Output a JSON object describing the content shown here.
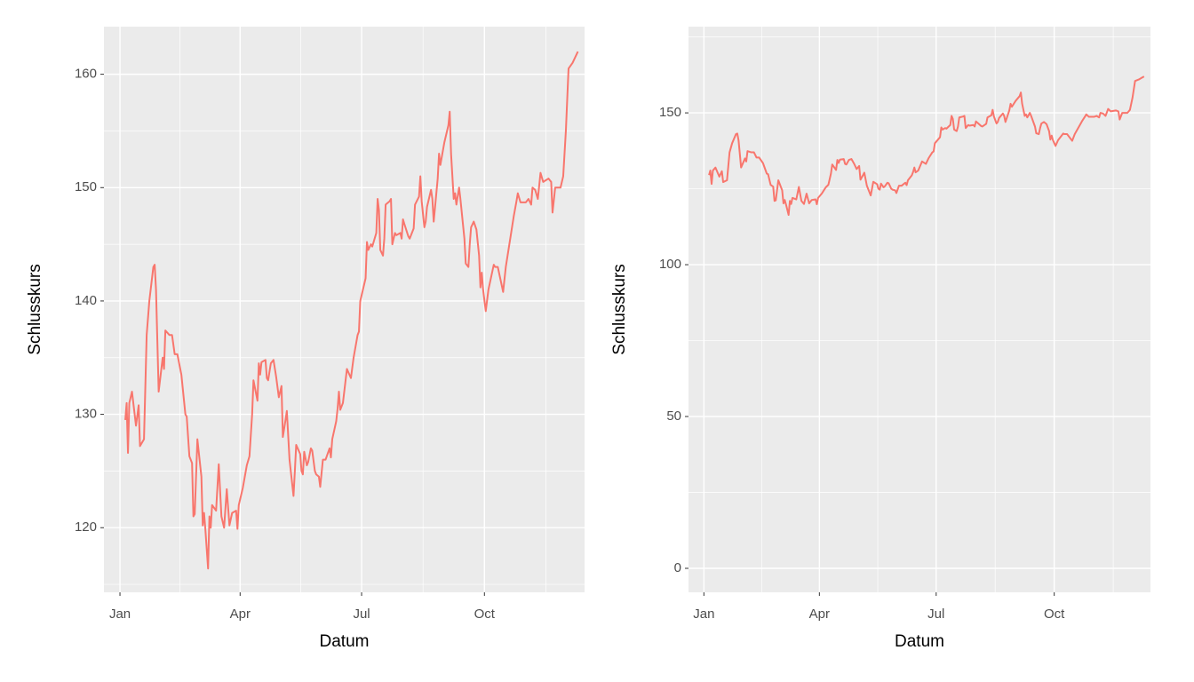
{
  "chart_data": [
    {
      "type": "line",
      "xlabel": "Datum",
      "ylabel": "Schlusskurs",
      "color": "#F8766D",
      "grid": true,
      "xlim": [
        -12,
        348
      ],
      "ylim": [
        114.3,
        164.2
      ],
      "xticks": [
        {
          "value": 0,
          "label": "Jan"
        },
        {
          "value": 90,
          "label": "Apr"
        },
        {
          "value": 181,
          "label": "Jul"
        },
        {
          "value": 273,
          "label": "Oct"
        }
      ],
      "yticks": [
        120,
        130,
        140,
        150,
        160
      ],
      "x": [
        4,
        5,
        6,
        7,
        9,
        12,
        14,
        15,
        18,
        20,
        22,
        25,
        26,
        27,
        29,
        31,
        32,
        33,
        34,
        37,
        39,
        41,
        43,
        46,
        49,
        50,
        52,
        54,
        55,
        56,
        58,
        61,
        62,
        63,
        64,
        66,
        67,
        68,
        69,
        72,
        74,
        76,
        78,
        80,
        82,
        84,
        87,
        88,
        89,
        92,
        95,
        97,
        99,
        100,
        103,
        104,
        105,
        106,
        109,
        110,
        111,
        113,
        115,
        117,
        119,
        121,
        122,
        124,
        125,
        127,
        130,
        131,
        132,
        135,
        136,
        137,
        138,
        140,
        141,
        143,
        144,
        146,
        147,
        149,
        150,
        152,
        154,
        157,
        158,
        159,
        162,
        163,
        164,
        165,
        167,
        169,
        170,
        173,
        175,
        178,
        179,
        180,
        183,
        184,
        185,
        186,
        188,
        189,
        192,
        193,
        194,
        195,
        197,
        198,
        199,
        202,
        203,
        204,
        206,
        207,
        210,
        211,
        212,
        213,
        216,
        217,
        220,
        221,
        224,
        225,
        226,
        228,
        229,
        230,
        233,
        234,
        235,
        238,
        239,
        240,
        243,
        246,
        247,
        248,
        250,
        251,
        252,
        254,
        255,
        258,
        259,
        261,
        262,
        263,
        265,
        267,
        269,
        270,
        271,
        272,
        274,
        276,
        280,
        281,
        283,
        287,
        289,
        293,
        295,
        297,
        298,
        300,
        304,
        306,
        308,
        309,
        311,
        313,
        315,
        317,
        321,
        323,
        324,
        326,
        330,
        332,
        334,
        336,
        339,
        341,
        343
      ],
      "values": [
        129.5,
        131,
        126.6,
        131,
        132,
        129,
        130.8,
        127.2,
        127.8,
        137,
        140,
        143,
        143.2,
        141,
        132,
        134,
        135,
        134,
        137.4,
        137,
        137,
        135.3,
        135.3,
        133.5,
        130,
        129.8,
        126.3,
        125.7,
        121,
        121.2,
        127.8,
        124.5,
        120.2,
        121.3,
        119.8,
        116.4,
        121,
        120,
        122,
        121.5,
        125.6,
        121,
        120,
        123.4,
        120.2,
        121.3,
        121.5,
        119.9,
        122,
        123.5,
        125.5,
        126.3,
        130,
        133,
        131.2,
        134.5,
        133.5,
        134.6,
        134.8,
        133.2,
        133,
        134.5,
        134.8,
        133.3,
        131.5,
        132.5,
        128,
        129.5,
        130.3,
        126,
        122.8,
        125,
        127.3,
        126.5,
        125,
        124.7,
        126.7,
        125.5,
        125.8,
        127,
        126.8,
        125,
        124.7,
        124.5,
        123.6,
        126,
        126,
        127,
        126.2,
        127.8,
        129.4,
        130.5,
        132,
        130.4,
        131,
        133,
        134,
        133.2,
        135,
        137,
        137.3,
        140,
        141.5,
        142,
        145.2,
        144.5,
        145,
        144.8,
        146,
        149,
        148,
        144.5,
        144,
        145.5,
        148.5,
        148.8,
        149,
        145,
        146,
        145.8,
        146,
        145.5,
        147.2,
        146.8,
        145.7,
        145.5,
        146.4,
        148.5,
        149.2,
        151,
        148.8,
        146.5,
        147,
        148.3,
        149.8,
        149,
        147,
        150.8,
        153,
        152,
        154,
        155.5,
        156.7,
        153,
        149,
        149.5,
        148.5,
        150,
        149,
        145.5,
        143.3,
        143,
        145,
        146.5,
        147,
        146.3,
        144,
        141.2,
        142.5,
        141,
        139.1,
        141,
        143.2,
        143,
        143,
        140.8,
        143,
        146,
        147.5,
        148.8,
        149.5,
        148.7,
        148.7,
        149,
        148.5,
        150,
        149.8,
        149,
        151.3,
        150.5,
        150.8,
        150.5,
        147.8,
        150,
        150,
        151,
        155,
        160.5,
        161,
        161.5,
        162
      ]
    },
    {
      "type": "line",
      "xlabel": "Datum",
      "ylabel": "Schlusskurs",
      "color": "#F8766D",
      "grid": true,
      "xlim": [
        -12,
        348
      ],
      "ylim": [
        -7.9,
        178.4
      ],
      "xticks": [
        {
          "value": 0,
          "label": "Jan"
        },
        {
          "value": 90,
          "label": "Apr"
        },
        {
          "value": 181,
          "label": "Jul"
        },
        {
          "value": 273,
          "label": "Oct"
        }
      ],
      "yticks": [
        0,
        50,
        100,
        150
      ],
      "x": [
        4,
        5,
        6,
        7,
        9,
        12,
        14,
        15,
        18,
        20,
        22,
        25,
        26,
        27,
        29,
        31,
        32,
        33,
        34,
        37,
        39,
        41,
        43,
        46,
        49,
        50,
        52,
        54,
        55,
        56,
        58,
        61,
        62,
        63,
        64,
        66,
        67,
        68,
        69,
        72,
        74,
        76,
        78,
        80,
        82,
        84,
        87,
        88,
        89,
        92,
        95,
        97,
        99,
        100,
        103,
        104,
        105,
        106,
        109,
        110,
        111,
        113,
        115,
        117,
        119,
        121,
        122,
        124,
        125,
        127,
        130,
        131,
        132,
        135,
        136,
        137,
        138,
        140,
        141,
        143,
        144,
        146,
        147,
        149,
        150,
        152,
        154,
        157,
        158,
        159,
        162,
        163,
        164,
        165,
        167,
        169,
        170,
        173,
        175,
        178,
        179,
        180,
        183,
        184,
        185,
        186,
        188,
        189,
        192,
        193,
        194,
        195,
        197,
        198,
        199,
        202,
        203,
        204,
        206,
        207,
        210,
        211,
        212,
        213,
        216,
        217,
        220,
        221,
        224,
        225,
        226,
        228,
        229,
        230,
        233,
        234,
        235,
        238,
        239,
        240,
        243,
        246,
        247,
        248,
        250,
        251,
        252,
        254,
        255,
        258,
        259,
        261,
        262,
        263,
        265,
        267,
        269,
        270,
        271,
        272,
        274,
        276,
        280,
        281,
        283,
        287,
        289,
        293,
        295,
        297,
        298,
        300,
        304,
        306,
        308,
        309,
        311,
        313,
        315,
        317,
        321,
        323,
        324,
        326,
        330,
        332,
        334,
        336,
        339,
        341,
        343
      ],
      "values": [
        129.5,
        131,
        126.6,
        131,
        132,
        129,
        130.8,
        127.2,
        127.8,
        137,
        140,
        143,
        143.2,
        141,
        132,
        134,
        135,
        134,
        137.4,
        137,
        137,
        135.3,
        135.3,
        133.5,
        130,
        129.8,
        126.3,
        125.7,
        121,
        121.2,
        127.8,
        124.5,
        120.2,
        121.3,
        119.8,
        116.4,
        121,
        120,
        122,
        121.5,
        125.6,
        121,
        120,
        123.4,
        120.2,
        121.3,
        121.5,
        119.9,
        122,
        123.5,
        125.5,
        126.3,
        130,
        133,
        131.2,
        134.5,
        133.5,
        134.6,
        134.8,
        133.2,
        133,
        134.5,
        134.8,
        133.3,
        131.5,
        132.5,
        128,
        129.5,
        130.3,
        126,
        122.8,
        125,
        127.3,
        126.5,
        125,
        124.7,
        126.7,
        125.5,
        125.8,
        127,
        126.8,
        125,
        124.7,
        124.5,
        123.6,
        126,
        126,
        127,
        126.2,
        127.8,
        129.4,
        130.5,
        132,
        130.4,
        131,
        133,
        134,
        133.2,
        135,
        137,
        137.3,
        140,
        141.5,
        142,
        145.2,
        144.5,
        145,
        144.8,
        146,
        149,
        148,
        144.5,
        144,
        145.5,
        148.5,
        148.8,
        149,
        145,
        146,
        145.8,
        146,
        145.5,
        147.2,
        146.8,
        145.7,
        145.5,
        146.4,
        148.5,
        149.2,
        151,
        148.8,
        146.5,
        147,
        148.3,
        149.8,
        149,
        147,
        150.8,
        153,
        152,
        154,
        155.5,
        156.7,
        153,
        149,
        149.5,
        148.5,
        150,
        149,
        145.5,
        143.3,
        143,
        145,
        146.5,
        147,
        146.3,
        144,
        141.2,
        142.5,
        141,
        139.1,
        141,
        143.2,
        143,
        143,
        140.8,
        143,
        146,
        147.5,
        148.8,
        149.5,
        148.7,
        148.7,
        149,
        148.5,
        150,
        149.8,
        149,
        151.3,
        150.5,
        150.8,
        150.5,
        147.8,
        150,
        150,
        151,
        155,
        160.5,
        161,
        161.5,
        162
      ]
    }
  ]
}
